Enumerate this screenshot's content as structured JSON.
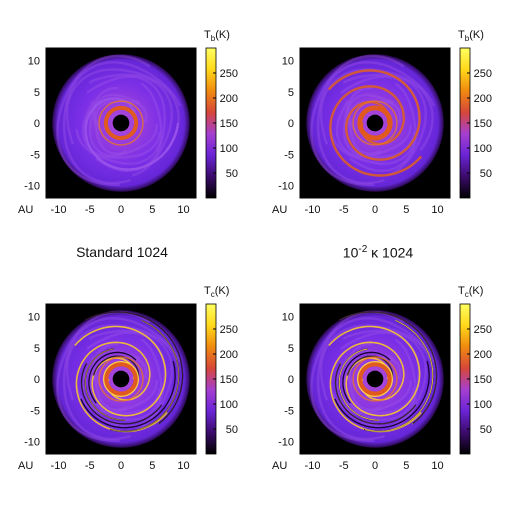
{
  "captions": {
    "left": "Standard 1024",
    "right_prefix": "10",
    "right_exp": "-2",
    "right_suffix": " κ 1024"
  },
  "chart_data": [
    {
      "type": "heatmap",
      "id": "p1",
      "quantity": "T",
      "sub": "b",
      "unit": "(K)",
      "xlabel": "AU",
      "xticks": [
        -10,
        -5,
        0,
        5,
        10
      ],
      "yticks": [
        10,
        5,
        0,
        -5,
        -10
      ],
      "xlim": [
        -12,
        12
      ],
      "ylim": [
        -12,
        12
      ],
      "colorbar_ticks": [
        50,
        100,
        150,
        200,
        250
      ],
      "colorbar_range": [
        0,
        300
      ],
      "colormap": [
        "#000000",
        "#3b0b6b",
        "#6a24d6",
        "#a63fd0",
        "#d6473a",
        "#f08a10",
        "#ffd81a",
        "#ffff60"
      ]
    },
    {
      "type": "heatmap",
      "id": "p2",
      "quantity": "T",
      "sub": "b",
      "unit": "(K)",
      "xlabel": "AU",
      "xticks": [
        -10,
        -5,
        0,
        5,
        10
      ],
      "yticks": [
        10,
        5,
        0,
        -5,
        -10
      ],
      "xlim": [
        -12,
        12
      ],
      "ylim": [
        -12,
        12
      ],
      "colorbar_ticks": [
        50,
        100,
        150,
        200,
        250
      ],
      "colorbar_range": [
        0,
        300
      ],
      "colormap": [
        "#000000",
        "#3b0b6b",
        "#6a24d6",
        "#a63fd0",
        "#d6473a",
        "#f08a10",
        "#ffd81a",
        "#ffff60"
      ]
    },
    {
      "type": "heatmap",
      "id": "p3",
      "quantity": "T",
      "sub": "c",
      "unit": "(K)",
      "xlabel": "AU",
      "xticks": [
        -10,
        -5,
        0,
        5,
        10
      ],
      "yticks": [
        10,
        5,
        0,
        -5,
        -10
      ],
      "xlim": [
        -12,
        12
      ],
      "ylim": [
        -12,
        12
      ],
      "colorbar_ticks": [
        50,
        100,
        150,
        200,
        250
      ],
      "colorbar_range": [
        0,
        300
      ],
      "colormap": [
        "#000000",
        "#3b0b6b",
        "#6a24d6",
        "#a63fd0",
        "#d6473a",
        "#f08a10",
        "#ffd81a",
        "#ffff60"
      ]
    },
    {
      "type": "heatmap",
      "id": "p4",
      "quantity": "T",
      "sub": "c",
      "unit": "(K)",
      "xlabel": "AU",
      "xticks": [
        -10,
        -5,
        0,
        5,
        10
      ],
      "yticks": [
        10,
        5,
        0,
        -5,
        -10
      ],
      "xlim": [
        -12,
        12
      ],
      "ylim": [
        -12,
        12
      ],
      "colorbar_ticks": [
        50,
        100,
        150,
        200,
        250
      ],
      "colorbar_range": [
        0,
        300
      ],
      "colormap": [
        "#000000",
        "#3b0b6b",
        "#6a24d6",
        "#a63fd0",
        "#d6473a",
        "#f08a10",
        "#ffd81a",
        "#ffff60"
      ]
    }
  ]
}
